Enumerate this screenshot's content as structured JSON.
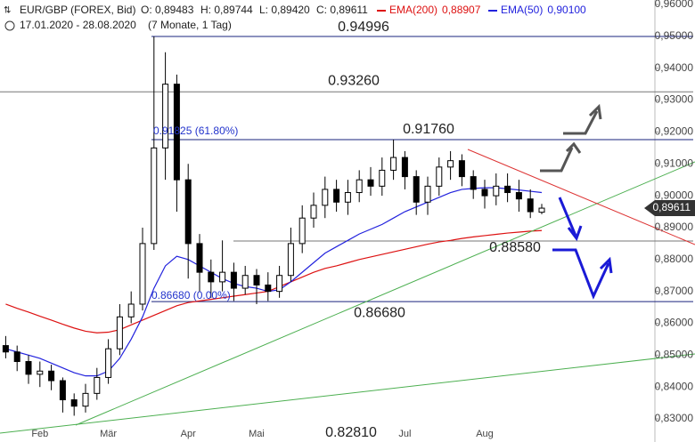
{
  "chart_data": {
    "type": "candlestick",
    "symbol": "EUR/GBP (FOREX, Bid)",
    "quote": [
      "O: 0,89483",
      "H: 0,89744",
      "L: 0,89420",
      "C: 0,89611"
    ],
    "range": "17.01.2020 - 28.08.2020",
    "span": "(7 Monate, 1 Tag)",
    "categories": [
      null,
      null,
      null,
      "Feb",
      null,
      null,
      null,
      null,
      null,
      "Mär",
      null,
      null,
      null,
      null,
      null,
      null,
      "Apr",
      null,
      null,
      null,
      null,
      null,
      "Mai",
      null,
      null,
      null,
      null,
      null,
      null,
      null,
      null,
      null,
      null,
      null,
      null,
      "Jul",
      null,
      null,
      null,
      null,
      null,
      null,
      "Aug",
      null,
      null,
      null,
      null,
      null
    ],
    "ohlc": {
      "open": [
        0.853,
        0.851,
        0.848,
        0.844,
        0.845,
        0.842,
        0.836,
        0.834,
        0.838,
        0.843,
        0.852,
        0.862,
        0.866,
        0.885,
        0.915,
        0.935,
        0.905,
        0.885,
        0.876,
        0.873,
        0.876,
        0.871,
        0.875,
        0.872,
        0.87,
        0.875,
        0.885,
        0.893,
        0.897,
        0.902,
        0.898,
        0.901,
        0.905,
        0.903,
        0.908,
        0.912,
        0.906,
        0.898,
        0.903,
        0.909,
        0.911,
        0.906,
        0.902,
        0.9,
        0.903,
        0.901,
        0.899,
        0.89483
      ],
      "high": [
        0.856,
        0.853,
        0.85,
        0.848,
        0.847,
        0.843,
        0.838,
        0.841,
        0.846,
        0.855,
        0.866,
        0.87,
        0.89,
        0.94996,
        0.945,
        0.938,
        0.91,
        0.888,
        0.88,
        0.886,
        0.879,
        0.878,
        0.877,
        0.876,
        0.878,
        0.89,
        0.897,
        0.901,
        0.906,
        0.905,
        0.905,
        0.908,
        0.909,
        0.912,
        0.9176,
        0.914,
        0.908,
        0.906,
        0.912,
        0.914,
        0.913,
        0.908,
        0.905,
        0.907,
        0.907,
        0.905,
        0.902,
        0.89744
      ],
      "low": [
        0.849,
        0.845,
        0.841,
        0.84,
        0.839,
        0.832,
        0.831,
        0.832,
        0.836,
        0.841,
        0.85,
        0.86,
        0.864,
        0.883,
        0.905,
        0.895,
        0.874,
        0.87,
        0.868,
        0.87,
        0.867,
        0.869,
        0.866,
        0.867,
        0.868,
        0.873,
        0.882,
        0.89,
        0.893,
        0.895,
        0.894,
        0.898,
        0.9,
        0.9,
        0.905,
        0.902,
        0.894,
        0.894,
        0.9,
        0.905,
        0.903,
        0.899,
        0.896,
        0.897,
        0.898,
        0.895,
        0.893,
        0.8942
      ],
      "close": [
        0.851,
        0.848,
        0.844,
        0.845,
        0.842,
        0.836,
        0.834,
        0.838,
        0.843,
        0.852,
        0.862,
        0.866,
        0.885,
        0.915,
        0.935,
        0.905,
        0.885,
        0.876,
        0.873,
        0.876,
        0.871,
        0.875,
        0.872,
        0.87,
        0.875,
        0.885,
        0.893,
        0.897,
        0.902,
        0.898,
        0.901,
        0.905,
        0.903,
        0.908,
        0.912,
        0.906,
        0.898,
        0.903,
        0.909,
        0.911,
        0.906,
        0.902,
        0.9,
        0.903,
        0.901,
        0.899,
        0.895,
        0.89611
      ]
    },
    "up_color": "#ffffff",
    "down_color": "#000000",
    "series": [
      {
        "name": "EMA(200)",
        "legend_value": "0,88907",
        "color": "#dd1111",
        "values": [
          0.866,
          0.8647,
          0.8635,
          0.8622,
          0.861,
          0.8597,
          0.8585,
          0.8575,
          0.857,
          0.8572,
          0.858,
          0.8595,
          0.861,
          0.8625,
          0.864,
          0.8655,
          0.8665,
          0.867,
          0.8675,
          0.868,
          0.8685,
          0.869,
          0.8695,
          0.87,
          0.8715,
          0.873,
          0.8745,
          0.876,
          0.8772,
          0.878,
          0.879,
          0.88,
          0.8808,
          0.8816,
          0.8824,
          0.8832,
          0.884,
          0.8848,
          0.8855,
          0.886,
          0.8866,
          0.8871,
          0.8875,
          0.8879,
          0.8883,
          0.8886,
          0.8889,
          0.88907
        ]
      },
      {
        "name": "EMA(50)",
        "legend_value": "0,90100",
        "color": "#2222dd",
        "values": [
          0.852,
          0.851,
          0.85,
          0.849,
          0.8475,
          0.846,
          0.8445,
          0.8435,
          0.8435,
          0.845,
          0.849,
          0.855,
          0.862,
          0.871,
          0.878,
          0.881,
          0.88,
          0.878,
          0.876,
          0.874,
          0.8725,
          0.8715,
          0.871,
          0.87,
          0.8705,
          0.873,
          0.876,
          0.879,
          0.882,
          0.884,
          0.886,
          0.888,
          0.8895,
          0.891,
          0.893,
          0.895,
          0.8965,
          0.898,
          0.8995,
          0.901,
          0.902,
          0.9023,
          0.9025,
          0.9025,
          0.9022,
          0.9018,
          0.9014,
          0.901
        ]
      }
    ],
    "levels": [
      {
        "value": 0.94996,
        "label": "0.94996"
      },
      {
        "value": 0.9326,
        "label": "0.93260"
      },
      {
        "value": 0.9176,
        "label": "0.91760"
      },
      {
        "value": 0.8858,
        "label": "0.88580"
      },
      {
        "value": 0.8668,
        "label": "0.86680"
      },
      {
        "value": 0.8281,
        "label": "0.82810"
      }
    ],
    "fib_labels": [
      "0.91825 (61.80%)",
      "0.86680 (0.00%)"
    ],
    "last_price_label": "0,89611",
    "ylim": [
      0.8275,
      0.9614
    ],
    "yticks": [
      {
        "value": 0.83,
        "label": "0,83000"
      },
      {
        "value": 0.84,
        "label": "0,84000"
      },
      {
        "value": 0.85,
        "label": "0,85000"
      },
      {
        "value": 0.86,
        "label": "0,86000"
      },
      {
        "value": 0.87,
        "label": "0,87000"
      },
      {
        "value": 0.88,
        "label": "0,88000"
      },
      {
        "value": 0.89,
        "label": "0,89000"
      },
      {
        "value": 0.9,
        "label": "0,90000"
      },
      {
        "value": 0.91,
        "label": "0,91000"
      },
      {
        "value": 0.92,
        "label": "0,92000"
      },
      {
        "value": 0.93,
        "label": "0,93000"
      },
      {
        "value": 0.94,
        "label": "0,94000"
      },
      {
        "value": 0.95,
        "label": "0,95000"
      },
      {
        "value": 0.96,
        "label": "0,96000"
      }
    ]
  }
}
